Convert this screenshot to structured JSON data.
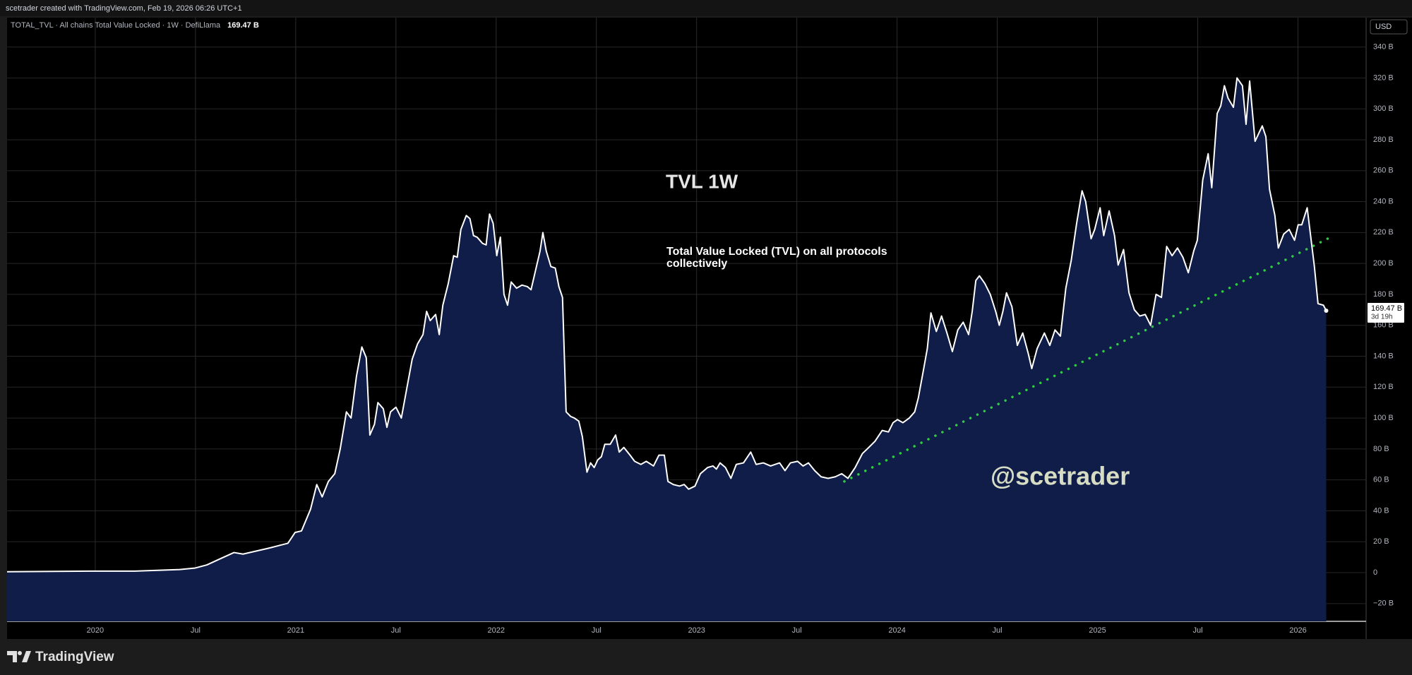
{
  "header": {
    "credit": "scetrader created with TradingView.com, Feb 19, 2026 06:26 UTC+1"
  },
  "footer": {
    "brand": "TradingView"
  },
  "chart_data": {
    "type": "area",
    "symbol_info": "TOTAL_TVL · All chains Total Value Locked · 1W · DefiLlama",
    "last_value_label": "169.47 B",
    "countdown": "3d 19h",
    "currency": "USD",
    "title": "TVL 1W",
    "subtitle": "Total Value Locked (TVL) on all protocols collectively",
    "watermark": "@scetrader",
    "color": "#ffffff",
    "fill_color": "#0f1d48",
    "grid": true,
    "xlim": [
      2019.56,
      2026.34
    ],
    "ylim": [
      -31.5,
      359
    ],
    "xticks": [
      2020,
      {
        "value": 2020.5,
        "label": "Jul"
      },
      2021,
      {
        "value": 2021.5,
        "label": "Jul"
      },
      2022,
      {
        "value": 2022.5,
        "label": "Jul"
      },
      2023,
      {
        "value": 2023.5,
        "label": "Jul"
      },
      2024,
      {
        "value": 2024.5,
        "label": "Jul"
      },
      2025,
      {
        "value": 2025.5,
        "label": "Jul"
      },
      2026
    ],
    "yticks": [
      {
        "value": -20,
        "label": "−20 B"
      },
      0,
      {
        "value": 20,
        "label": "20 B"
      },
      {
        "value": 40,
        "label": "40 B"
      },
      {
        "value": 60,
        "label": "60 B"
      },
      {
        "value": 80,
        "label": "80 B"
      },
      {
        "value": 100,
        "label": "100 B"
      },
      {
        "value": 120,
        "label": "120 B"
      },
      {
        "value": 140,
        "label": "140 B"
      },
      {
        "value": 160,
        "label": "160 B"
      },
      {
        "value": 180,
        "label": "180 B"
      },
      {
        "value": 200,
        "label": "200 B"
      },
      {
        "value": 220,
        "label": "220 B"
      },
      {
        "value": 240,
        "label": "240 B"
      },
      {
        "value": 260,
        "label": "260 B"
      },
      {
        "value": 280,
        "label": "280 B"
      },
      {
        "value": 300,
        "label": "300 B"
      },
      {
        "value": 320,
        "label": "320 B"
      },
      {
        "value": 340,
        "label": "340 B"
      }
    ],
    "x": [
      2019.56,
      2019.973,
      2020.198,
      2020.422,
      2020.499,
      2020.557,
      2020.624,
      2020.692,
      2020.737,
      2020.804,
      2020.871,
      2020.916,
      2020.961,
      2020.997,
      2021.029,
      2021.074,
      2021.105,
      2021.132,
      2021.163,
      2021.195,
      2021.222,
      2021.253,
      2021.276,
      2021.303,
      2021.33,
      2021.352,
      2021.37,
      2021.393,
      2021.41,
      2021.437,
      2021.455,
      2021.473,
      2021.5,
      2021.527,
      2021.554,
      2021.581,
      2021.608,
      2021.635,
      2021.653,
      2021.671,
      2021.698,
      2021.716,
      2021.734,
      2021.761,
      2021.788,
      2021.806,
      2021.824,
      2021.851,
      2021.869,
      2021.887,
      2021.905,
      2021.932,
      2021.95,
      2021.967,
      2021.985,
      2022.003,
      2022.021,
      2022.039,
      2022.057,
      2022.075,
      2022.102,
      2022.129,
      2022.156,
      2022.174,
      2022.201,
      2022.219,
      2022.233,
      2022.25,
      2022.273,
      2022.295,
      2022.313,
      2022.331,
      2022.349,
      2022.372,
      2022.39,
      2022.412,
      2022.43,
      2022.453,
      2022.471,
      2022.489,
      2022.507,
      2022.525,
      2022.542,
      2022.569,
      2022.596,
      2022.614,
      2022.637,
      2022.668,
      2022.691,
      2022.722,
      2022.749,
      2022.785,
      2022.812,
      2022.839,
      2022.857,
      2022.884,
      2022.915,
      2022.938,
      2022.96,
      2022.992,
      2023.019,
      2023.055,
      2023.082,
      2023.099,
      2023.117,
      2023.144,
      2023.171,
      2023.198,
      2023.234,
      2023.27,
      2023.297,
      2023.333,
      2023.369,
      2023.414,
      2023.441,
      2023.468,
      2023.504,
      2023.531,
      2023.558,
      2023.589,
      2023.621,
      2023.656,
      2023.692,
      2023.724,
      2023.755,
      2023.791,
      2023.827,
      2023.859,
      2023.89,
      2023.926,
      2023.957,
      2023.98,
      2024.002,
      2024.029,
      2024.061,
      2024.088,
      2024.106,
      2024.133,
      2024.151,
      2024.169,
      2024.196,
      2024.222,
      2024.249,
      2024.276,
      2024.303,
      2024.33,
      2024.357,
      2024.375,
      2024.393,
      2024.411,
      2024.438,
      2024.465,
      2024.492,
      2024.51,
      2024.528,
      2024.546,
      2024.573,
      2024.6,
      2024.627,
      2024.654,
      2024.672,
      2024.699,
      2024.735,
      2024.762,
      2024.788,
      2024.815,
      2024.842,
      2024.869,
      2024.896,
      2024.923,
      2024.941,
      2024.968,
      2024.986,
      2025.013,
      2025.031,
      2025.058,
      2025.085,
      2025.103,
      2025.13,
      2025.157,
      2025.184,
      2025.211,
      2025.238,
      2025.265,
      2025.292,
      2025.319,
      2025.345,
      2025.372,
      2025.399,
      2025.426,
      2025.453,
      2025.48,
      2025.498,
      2025.525,
      2025.552,
      2025.57,
      2025.597,
      2025.615,
      2025.633,
      2025.651,
      2025.678,
      2025.696,
      2025.723,
      2025.741,
      2025.759,
      2025.786,
      2025.804,
      2025.822,
      2025.84,
      2025.858,
      2025.885,
      2025.902,
      2025.929,
      2025.956,
      2025.983,
      2026.001,
      2026.019,
      2026.046,
      2026.064,
      2026.082,
      2026.1,
      2026.127,
      2026.141
    ],
    "values": [
      0.6,
      1,
      1,
      2,
      3,
      5,
      9,
      13,
      12,
      14,
      16,
      17.5,
      19,
      26,
      27,
      41,
      57,
      49,
      59,
      64,
      80,
      104,
      100,
      127,
      146,
      139,
      89,
      96,
      110,
      106,
      94,
      104,
      107,
      100,
      119,
      138,
      148,
      154,
      169,
      163,
      167,
      154,
      173,
      187,
      205,
      204,
      222,
      231,
      229,
      218,
      217,
      213,
      212,
      232,
      226,
      205,
      217,
      180,
      173,
      188,
      184,
      186,
      185,
      183,
      198,
      208,
      220,
      208,
      198,
      197,
      185,
      178,
      104,
      101,
      100,
      98,
      88,
      65,
      71,
      68,
      73,
      75,
      83,
      83,
      89,
      78,
      81,
      76,
      72,
      70,
      72,
      69,
      76,
      76,
      59,
      57,
      56,
      57,
      54,
      56,
      64,
      68,
      69,
      67,
      71,
      68,
      61,
      70,
      71,
      78,
      70,
      71,
      69,
      71,
      66,
      71,
      72,
      69,
      71,
      66,
      62,
      61,
      62,
      64,
      61,
      68,
      77,
      81,
      85,
      92,
      91,
      97,
      99,
      97,
      100,
      104,
      113,
      132,
      145,
      168,
      156,
      166,
      155,
      143,
      157,
      162,
      154,
      169,
      189,
      192,
      187,
      180,
      169,
      160,
      169,
      181,
      172,
      147,
      155,
      142,
      132,
      145,
      155,
      147,
      157,
      153,
      184,
      202,
      226,
      247,
      240,
      216,
      222,
      236,
      218,
      234,
      218,
      199,
      209,
      181,
      170,
      166,
      167,
      160,
      180,
      178,
      211,
      205,
      210,
      204,
      194,
      208,
      215,
      254,
      271,
      249,
      297,
      302,
      315,
      307,
      301,
      320,
      315,
      290,
      318,
      279,
      284,
      289,
      282,
      248,
      231,
      210,
      219,
      222,
      215,
      225,
      225,
      236,
      217,
      198,
      174,
      173,
      169.47
    ],
    "trendline": {
      "x": [
        2023.737,
        2026.163
      ],
      "values": [
        59,
        217
      ],
      "color": "#2ecc40"
    }
  }
}
